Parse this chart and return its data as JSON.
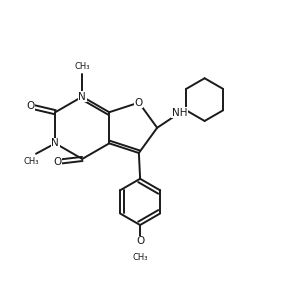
{
  "background_color": "#ffffff",
  "line_color": "#1a1a1a",
  "line_width": 1.4,
  "figsize": [
    2.98,
    3.06
  ],
  "dpi": 100,
  "xlim": [
    0,
    10
  ],
  "ylim": [
    0,
    10
  ]
}
